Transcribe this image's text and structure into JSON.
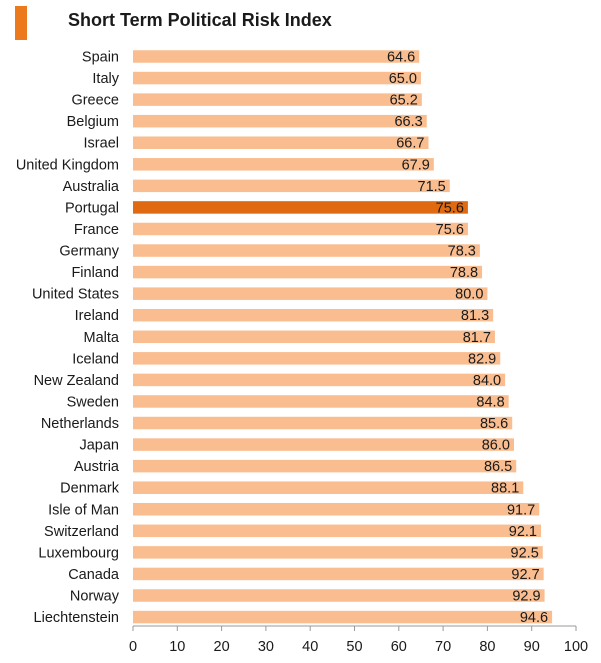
{
  "title_accent_color": "#ec7a1c",
  "chart_data": {
    "type": "bar",
    "orientation": "horizontal",
    "title": "Short Term Political Risk Index",
    "categories": [
      "Spain",
      "Italy",
      "Greece",
      "Belgium",
      "Israel",
      "United Kingdom",
      "Australia",
      "Portugal",
      "France",
      "Germany",
      "Finland",
      "United States",
      "Ireland",
      "Malta",
      "Iceland",
      "New Zealand",
      "Sweden",
      "Netherlands",
      "Japan",
      "Austria",
      "Denmark",
      "Isle of Man",
      "Switzerland",
      "Luxembourg",
      "Canada",
      "Norway",
      "Liechtenstein"
    ],
    "values": [
      64.6,
      65.0,
      65.2,
      66.3,
      66.7,
      67.9,
      71.5,
      75.6,
      75.6,
      78.3,
      78.8,
      80.0,
      81.3,
      81.7,
      82.9,
      84.0,
      84.8,
      85.6,
      86.0,
      86.5,
      88.1,
      91.7,
      92.1,
      92.5,
      92.7,
      92.9,
      94.6
    ],
    "value_labels": [
      "64.6",
      "65.0",
      "65.2",
      "66.3",
      "66.7",
      "67.9",
      "71.5",
      "75.6",
      "75.6",
      "78.3",
      "78.8",
      "80.0",
      "81.3",
      "81.7",
      "82.9",
      "84.0",
      "84.8",
      "85.6",
      "86.0",
      "86.5",
      "88.1",
      "91.7",
      "92.1",
      "92.5",
      "92.7",
      "92.9",
      "94.6"
    ],
    "highlight_category": "Portugal",
    "xlim": [
      0,
      100
    ],
    "xticks": [
      "0",
      "10",
      "20",
      "30",
      "40",
      "50",
      "60",
      "70",
      "80",
      "90",
      "100"
    ],
    "grid": false,
    "colors": {
      "bar": "#f9bd8f",
      "highlight": "#e06a12",
      "axis": "#999999"
    }
  }
}
